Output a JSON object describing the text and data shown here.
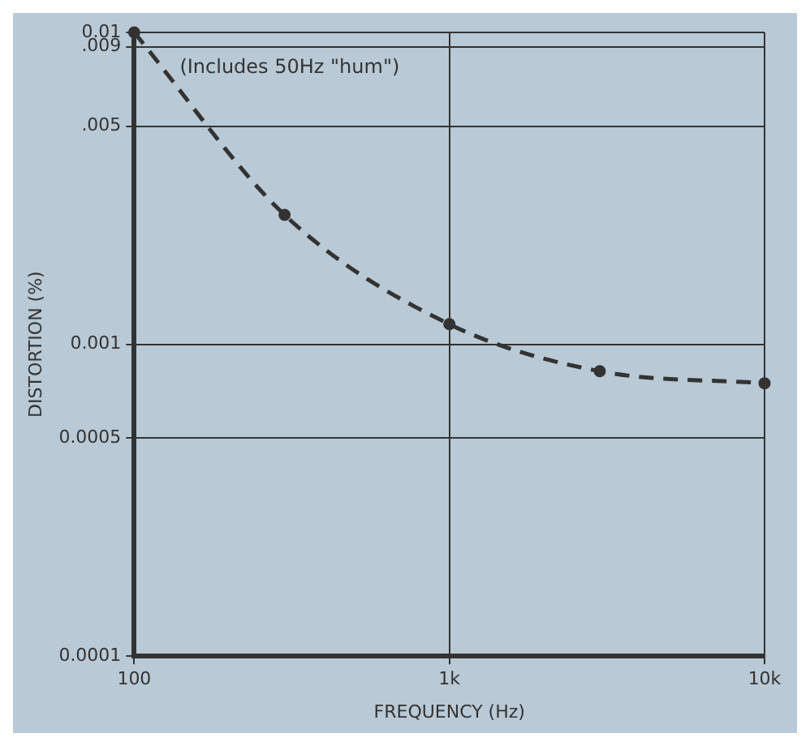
{
  "chart_data": {
    "type": "line",
    "xlabel": "FREQUENCY (Hz)",
    "ylabel": "DISTORTION (%)",
    "log": "xy",
    "x": [
      100,
      300,
      1000,
      3000,
      10000
    ],
    "series": [
      {
        "color": "#333333",
        "values": [
          0.01,
          0.0026,
          0.00116,
          0.00082,
          0.00075
        ]
      }
    ],
    "xlim": [
      100,
      10000
    ],
    "xticks": [
      100,
      {
        "value": 1000,
        "label": "1k"
      },
      {
        "value": 10000,
        "label": "10k"
      }
    ],
    "ylim": [
      0.0001,
      0.01
    ],
    "yticks": [
      {
        "value": 0.0001,
        "label": "0.0001"
      },
      {
        "value": 0.0005,
        "label": "0.0005"
      },
      {
        "value": 0.001,
        "label": "0.001"
      },
      {
        "value": 0.005,
        "label": ".005"
      },
      {
        "value": 0.009,
        "label": ".009"
      },
      {
        "value": 0.01,
        "label": "0.01"
      }
    ],
    "grid": true,
    "marker": "circle",
    "line_style": "dashed",
    "legend": false,
    "annotations": [
      "(Includes 50Hz \"hum\")"
    ]
  }
}
